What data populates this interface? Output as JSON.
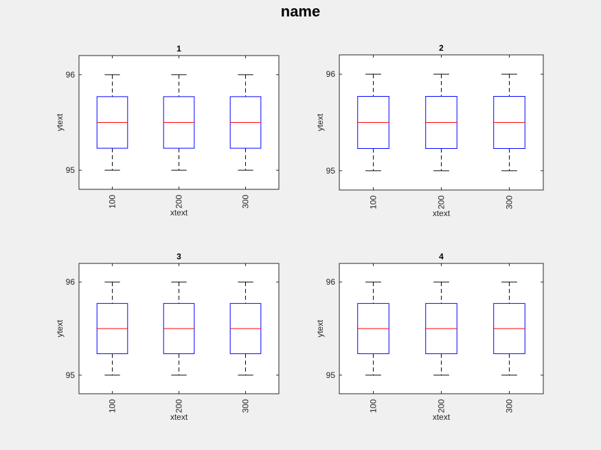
{
  "figure": {
    "title": "name"
  },
  "colors": {
    "box": "#0000ff",
    "median": "#ff0000",
    "whisker": "#000000",
    "axes_bg": "#ffffff",
    "figure_bg": "#f0f0f0"
  },
  "chart_data": [
    {
      "type": "box",
      "title": "1",
      "xlabel": "xtext",
      "ylabel": "ytext",
      "categories": [
        "100",
        "200",
        "300"
      ],
      "ylim": [
        94.8,
        96.2
      ],
      "yticks": [
        "95",
        "96"
      ],
      "boxes": [
        {
          "category": "100",
          "min": 95,
          "q1": 95.23,
          "median": 95.5,
          "q3": 95.77,
          "max": 96
        },
        {
          "category": "200",
          "min": 95,
          "q1": 95.23,
          "median": 95.5,
          "q3": 95.77,
          "max": 96
        },
        {
          "category": "300",
          "min": 95,
          "q1": 95.23,
          "median": 95.5,
          "q3": 95.77,
          "max": 96
        }
      ]
    },
    {
      "type": "box",
      "title": "2",
      "xlabel": "xtext",
      "ylabel": "ytext",
      "categories": [
        "100",
        "200",
        "300"
      ],
      "ylim": [
        94.8,
        96.2
      ],
      "yticks": [
        "95",
        "96"
      ],
      "boxes": [
        {
          "category": "100",
          "min": 95,
          "q1": 95.23,
          "median": 95.5,
          "q3": 95.77,
          "max": 96
        },
        {
          "category": "200",
          "min": 95,
          "q1": 95.23,
          "median": 95.5,
          "q3": 95.77,
          "max": 96
        },
        {
          "category": "300",
          "min": 95,
          "q1": 95.23,
          "median": 95.5,
          "q3": 95.77,
          "max": 96
        }
      ]
    },
    {
      "type": "box",
      "title": "3",
      "xlabel": "xtext",
      "ylabel": "ytext",
      "categories": [
        "100",
        "200",
        "300"
      ],
      "ylim": [
        94.8,
        96.2
      ],
      "yticks": [
        "95",
        "96"
      ],
      "boxes": [
        {
          "category": "100",
          "min": 95,
          "q1": 95.23,
          "median": 95.5,
          "q3": 95.77,
          "max": 96
        },
        {
          "category": "200",
          "min": 95,
          "q1": 95.23,
          "median": 95.5,
          "q3": 95.77,
          "max": 96
        },
        {
          "category": "300",
          "min": 95,
          "q1": 95.23,
          "median": 95.5,
          "q3": 95.77,
          "max": 96
        }
      ]
    },
    {
      "type": "box",
      "title": "4",
      "xlabel": "xtext",
      "ylabel": "ytext",
      "categories": [
        "100",
        "200",
        "300"
      ],
      "ylim": [
        94.8,
        96.2
      ],
      "yticks": [
        "95",
        "96"
      ],
      "boxes": [
        {
          "category": "100",
          "min": 95,
          "q1": 95.23,
          "median": 95.5,
          "q3": 95.77,
          "max": 96
        },
        {
          "category": "200",
          "min": 95,
          "q1": 95.23,
          "median": 95.5,
          "q3": 95.77,
          "max": 96
        },
        {
          "category": "300",
          "min": 95,
          "q1": 95.23,
          "median": 95.5,
          "q3": 95.77,
          "max": 96
        }
      ]
    }
  ]
}
